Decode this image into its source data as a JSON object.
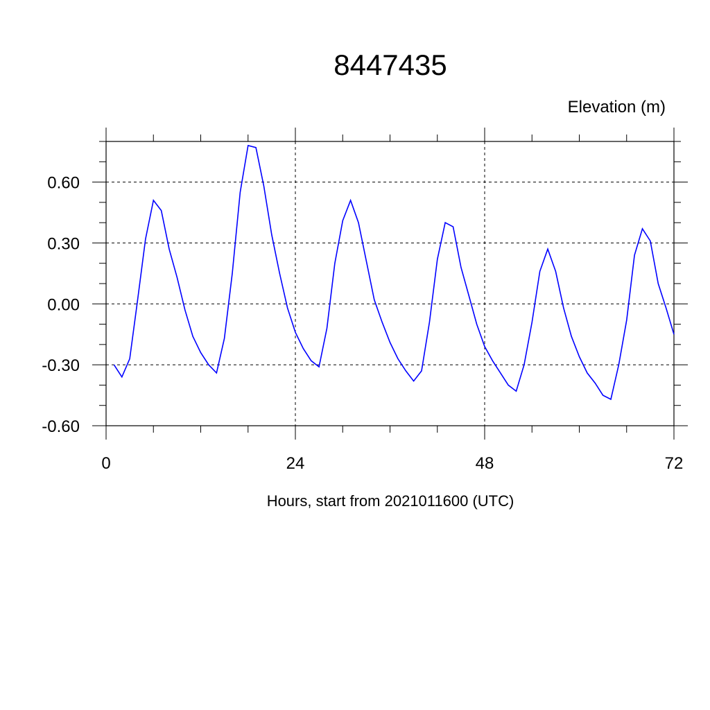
{
  "chart_data": {
    "type": "line",
    "title": "8447435",
    "ylabel": "Elevation (m)",
    "xlabel": "Hours, start from 2021011600 (UTC)",
    "xlim": [
      0,
      72
    ],
    "ylim": [
      -0.6,
      0.8
    ],
    "x_ticks": [
      0,
      24,
      48,
      72
    ],
    "x_tick_labels": [
      "0",
      "24",
      "48",
      "72"
    ],
    "y_ticks": [
      -0.6,
      -0.3,
      0.0,
      0.3,
      0.6
    ],
    "y_tick_labels": [
      "-0.60",
      "-0.30",
      "0.00",
      "0.30",
      "0.60"
    ],
    "grid": true,
    "series_color": "#0000ff",
    "x": [
      1,
      2,
      3,
      4,
      5,
      6,
      7,
      8,
      9,
      10,
      11,
      12,
      13,
      14,
      15,
      16,
      17,
      18,
      19,
      20,
      21,
      22,
      23,
      24,
      25,
      26,
      27,
      28,
      29,
      30,
      31,
      32,
      33,
      34,
      35,
      36,
      37,
      38,
      39,
      40,
      41,
      42,
      43,
      44,
      45,
      46,
      47,
      48,
      49,
      50,
      51,
      52,
      53,
      54,
      55,
      56,
      57,
      58,
      59,
      60,
      61,
      62,
      63,
      64,
      65,
      66,
      67,
      68,
      69,
      70,
      71,
      72
    ],
    "y": [
      -0.3,
      -0.36,
      -0.27,
      0.02,
      0.32,
      0.51,
      0.46,
      0.27,
      0.13,
      -0.03,
      -0.16,
      -0.24,
      -0.3,
      -0.34,
      -0.17,
      0.15,
      0.55,
      0.78,
      0.77,
      0.58,
      0.34,
      0.15,
      -0.02,
      -0.14,
      -0.22,
      -0.28,
      -0.31,
      -0.12,
      0.2,
      0.41,
      0.51,
      0.4,
      0.21,
      0.02,
      -0.09,
      -0.19,
      -0.27,
      -0.33,
      -0.38,
      -0.33,
      -0.09,
      0.22,
      0.4,
      0.38,
      0.18,
      0.04,
      -0.1,
      -0.21,
      -0.28,
      -0.34,
      -0.4,
      -0.43,
      -0.3,
      -0.09,
      0.16,
      0.27,
      0.16,
      -0.02,
      -0.16,
      -0.26,
      -0.34,
      -0.39,
      -0.45,
      -0.47,
      -0.3,
      -0.08,
      0.24,
      0.37,
      0.31,
      0.1,
      -0.02,
      -0.15
    ]
  }
}
